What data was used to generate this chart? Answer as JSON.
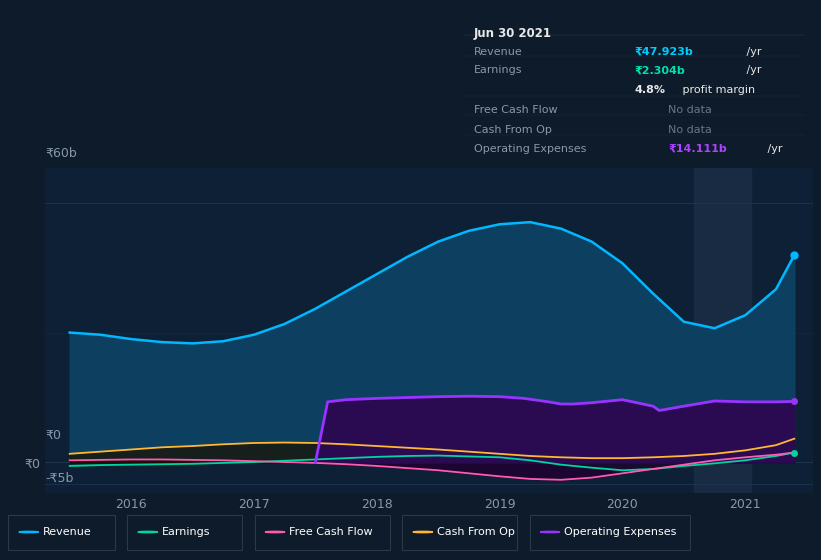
{
  "background_color": "#0d1b2a",
  "panel_bg": "#0d2035",
  "grid_color": "#1e3550",
  "ylim": [
    -7,
    68
  ],
  "xlim": [
    2015.3,
    2021.55
  ],
  "years": [
    2015.5,
    2015.75,
    2016.0,
    2016.25,
    2016.5,
    2016.75,
    2017.0,
    2017.25,
    2017.5,
    2017.75,
    2018.0,
    2018.25,
    2018.5,
    2018.75,
    2019.0,
    2019.25,
    2019.5,
    2019.75,
    2020.0,
    2020.25,
    2020.5,
    2020.75,
    2021.0,
    2021.25,
    2021.4
  ],
  "revenue": [
    30,
    29.5,
    28.5,
    27.8,
    27.5,
    28.0,
    29.5,
    32.0,
    35.5,
    39.5,
    43.5,
    47.5,
    51.0,
    53.5,
    55.0,
    55.5,
    54.0,
    51.0,
    46.0,
    39.0,
    32.5,
    31.0,
    34.0,
    40.0,
    47.9
  ],
  "earnings": [
    -0.8,
    -0.6,
    -0.5,
    -0.4,
    -0.3,
    -0.1,
    0.1,
    0.4,
    0.7,
    1.0,
    1.3,
    1.5,
    1.6,
    1.4,
    1.2,
    0.5,
    -0.5,
    -1.2,
    -1.8,
    -1.5,
    -0.8,
    -0.2,
    0.5,
    1.5,
    2.3
  ],
  "free_cash_flow": [
    0.5,
    0.6,
    0.7,
    0.7,
    0.6,
    0.5,
    0.3,
    0.1,
    -0.1,
    -0.4,
    -0.8,
    -1.3,
    -1.8,
    -2.5,
    -3.2,
    -3.8,
    -4.0,
    -3.5,
    -2.5,
    -1.5,
    -0.5,
    0.5,
    1.2,
    1.8,
    2.3
  ],
  "cash_from_op": [
    2.0,
    2.5,
    3.0,
    3.5,
    3.8,
    4.2,
    4.5,
    4.6,
    4.5,
    4.2,
    3.8,
    3.4,
    3.0,
    2.5,
    2.0,
    1.5,
    1.2,
    1.0,
    1.0,
    1.2,
    1.5,
    2.0,
    2.8,
    4.0,
    5.5
  ],
  "op_expenses_x": [
    2017.5,
    2017.6,
    2017.75,
    2018.0,
    2018.25,
    2018.5,
    2018.75,
    2019.0,
    2019.2,
    2019.4,
    2019.5,
    2019.6,
    2019.75,
    2020.0,
    2020.25,
    2020.3,
    2020.5,
    2020.75,
    2021.0,
    2021.25,
    2021.4
  ],
  "op_expenses": [
    0,
    14.0,
    14.5,
    14.8,
    15.0,
    15.2,
    15.3,
    15.2,
    14.8,
    14.0,
    13.5,
    13.5,
    13.8,
    14.5,
    13.0,
    12.0,
    13.0,
    14.2,
    14.0,
    14.0,
    14.1
  ],
  "revenue_color": "#00b8ff",
  "revenue_fill": "#0d4060",
  "earnings_color": "#00d4a0",
  "fcf_color": "#ff5cb0",
  "cashop_color": "#ffb830",
  "opex_color": "#9933ff",
  "opex_fill": "#2a0a50",
  "highlight_x0": 2020.58,
  "highlight_x1": 2021.05,
  "highlight_color": "#1a2d45",
  "tooltip": {
    "date": "Jun 30 2021",
    "revenue_label": "Revenue",
    "revenue_val": "₹47.923b",
    "revenue_unit": " /yr",
    "earnings_label": "Earnings",
    "earnings_val": "₹2.304b",
    "earnings_unit": " /yr",
    "profit_pct": "4.8%",
    "profit_text": " profit margin",
    "fcf_label": "Free Cash Flow",
    "fcf_val": "No data",
    "cashop_label": "Cash From Op",
    "cashop_val": "No data",
    "opex_label": "Operating Expenses",
    "opex_val": "₹14.111b",
    "opex_unit": " /yr",
    "revenue_color": "#00ccff",
    "earnings_color": "#00e0b0",
    "opex_color": "#aa44ff",
    "nodata_color": "#667788",
    "label_color": "#8899aa",
    "white": "#e8e8e8",
    "bg": "#050c14",
    "border": "#2a3a4a"
  },
  "legend_items": [
    {
      "label": "Revenue",
      "color": "#00b8ff"
    },
    {
      "label": "Earnings",
      "color": "#00d4a0"
    },
    {
      "label": "Free Cash Flow",
      "color": "#ff5cb0"
    },
    {
      "label": "Cash From Op",
      "color": "#ffb830"
    },
    {
      "label": "Operating Expenses",
      "color": "#9933ff"
    }
  ]
}
